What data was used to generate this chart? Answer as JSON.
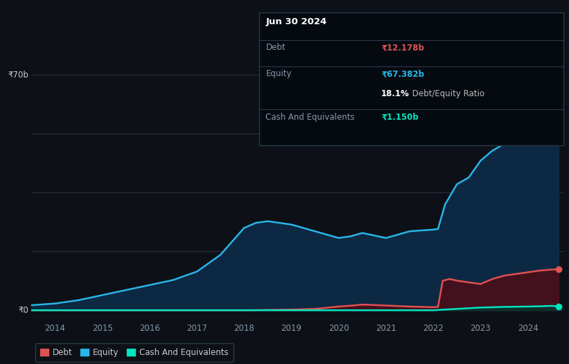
{
  "bg_color": "#0d1117",
  "plot_bg_color": "#0d1117",
  "grid_color": "#253346",
  "title_box": {
    "date": "Jun 30 2024",
    "debt_label": "Debt",
    "debt_value": "₹12.178b",
    "equity_label": "Equity",
    "equity_value": "₹67.382b",
    "ratio_value": "18.1%",
    "ratio_label": " Debt/Equity Ratio",
    "cash_label": "Cash And Equivalents",
    "cash_value": "₹1.150b",
    "debt_color": "#e05252",
    "equity_color": "#29b6e8",
    "cash_color": "#00e5c0",
    "ratio_bold_color": "#ffffff",
    "label_color": "#8899aa",
    "box_bg": "#050a10",
    "box_border": "#2a3a4a"
  },
  "ylabel_text": "₹70b",
  "y0_text": "₹0",
  "ylim": [
    -3,
    75
  ],
  "xlim": [
    2013.5,
    2024.75
  ],
  "ytick_vals": [
    0,
    17.5,
    35,
    52.5,
    70
  ],
  "xticks": [
    2014,
    2015,
    2016,
    2017,
    2018,
    2019,
    2020,
    2021,
    2022,
    2023,
    2024
  ],
  "equity_x": [
    2013.5,
    2014.0,
    2014.5,
    2015.0,
    2015.5,
    2016.0,
    2016.5,
    2017.0,
    2017.5,
    2018.0,
    2018.25,
    2018.5,
    2019.0,
    2019.5,
    2020.0,
    2020.25,
    2020.5,
    2021.0,
    2021.25,
    2021.5,
    2022.0,
    2022.1,
    2022.25,
    2022.5,
    2022.75,
    2023.0,
    2023.25,
    2023.5,
    2023.75,
    2024.0,
    2024.25,
    2024.5,
    2024.65
  ],
  "equity_y": [
    1.5,
    2.0,
    3.0,
    4.5,
    6.0,
    7.5,
    9.0,
    11.5,
    16.5,
    24.5,
    26.0,
    26.5,
    25.5,
    23.5,
    21.5,
    22.0,
    23.0,
    21.5,
    22.5,
    23.5,
    24.0,
    24.2,
    31.5,
    37.5,
    39.5,
    44.5,
    47.5,
    49.5,
    51.5,
    55.5,
    59.5,
    65.5,
    67.4
  ],
  "equity_color": "#29b6e8",
  "equity_fill": "#0d2a45",
  "equity_fill_alpha": 0.95,
  "debt_x": [
    2013.5,
    2014.0,
    2015.0,
    2016.0,
    2017.0,
    2018.0,
    2019.0,
    2019.5,
    2020.0,
    2020.3,
    2020.5,
    2021.0,
    2021.5,
    2022.0,
    2022.1,
    2022.2,
    2022.35,
    2022.5,
    2022.75,
    2023.0,
    2023.25,
    2023.5,
    2023.75,
    2024.0,
    2024.25,
    2024.5,
    2024.65
  ],
  "debt_y": [
    0.0,
    0.0,
    0.0,
    0.0,
    0.0,
    0.0,
    0.2,
    0.4,
    1.1,
    1.4,
    1.7,
    1.4,
    1.1,
    0.9,
    1.0,
    8.8,
    9.3,
    8.8,
    8.3,
    7.8,
    9.3,
    10.3,
    10.8,
    11.3,
    11.8,
    12.1,
    12.178
  ],
  "debt_color": "#e05252",
  "debt_fill": "#4a0f1a",
  "debt_fill_alpha": 0.9,
  "cash_x": [
    2013.5,
    2014.0,
    2015.0,
    2016.0,
    2017.0,
    2018.0,
    2019.0,
    2020.0,
    2021.0,
    2022.0,
    2022.5,
    2023.0,
    2023.5,
    2024.0,
    2024.5,
    2024.65
  ],
  "cash_y": [
    0.0,
    0.0,
    0.0,
    0.0,
    0.0,
    0.0,
    0.0,
    0.0,
    0.0,
    0.0,
    0.4,
    0.8,
    1.0,
    1.1,
    1.3,
    1.15
  ],
  "cash_color": "#00e5c0",
  "cash_fill": "#003830",
  "cash_fill_alpha": 0.8,
  "legend": [
    {
      "label": "Debt",
      "color": "#e05252"
    },
    {
      "label": "Equity",
      "color": "#29b6e8"
    },
    {
      "label": "Cash And Equivalents",
      "color": "#00e5c0"
    }
  ]
}
